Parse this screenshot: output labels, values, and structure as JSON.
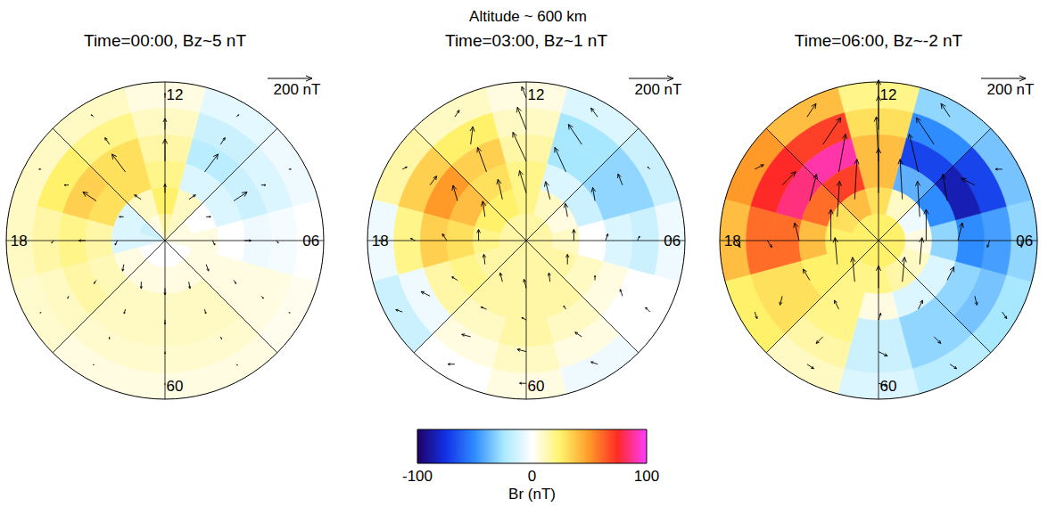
{
  "title": "Altitude ~ 600 km",
  "grid_lat_edges": [
    60,
    65,
    70,
    75,
    80,
    85,
    90
  ],
  "grid_mlt_centers": [
    0,
    2,
    4,
    6,
    8,
    10,
    12,
    14,
    16,
    18,
    20,
    22
  ],
  "vector_mlt": [
    0,
    2,
    4,
    6,
    8,
    10,
    12,
    14,
    16,
    18,
    20,
    22
  ],
  "vector_lat": [
    63,
    69,
    75,
    81
  ],
  "mlt_labels": [
    12,
    18,
    {
      "value": 6,
      "label": "06"
    }
  ],
  "lat_labels": [
    60
  ],
  "colorbar": {
    "range": [
      -100,
      100
    ],
    "ticks": [
      -100,
      0,
      100
    ],
    "label": "Br (nT)",
    "colors": [
      "#1e0066",
      "#1232e6",
      "#2e8cff",
      "#a8e8ff",
      "#ffffff",
      "#fff26a",
      "#ff9a28",
      "#ff2a28",
      "#ff3cff"
    ]
  },
  "chart_data": [
    {
      "type": "polar_map",
      "title": "Time=00:00, Bz~5 nT",
      "arrow_scale": {
        "value": 200,
        "label": "200 nT"
      },
      "br": [
        [
          5,
          5,
          3,
          0,
          -5,
          -8,
          5,
          10,
          10,
          10,
          8,
          5
        ],
        [
          8,
          8,
          5,
          -3,
          -10,
          -15,
          10,
          20,
          25,
          15,
          10,
          8
        ],
        [
          10,
          10,
          5,
          -5,
          -15,
          -20,
          15,
          30,
          35,
          20,
          15,
          10
        ],
        [
          10,
          10,
          5,
          0,
          -10,
          -10,
          20,
          30,
          30,
          15,
          12,
          10
        ],
        [
          5,
          5,
          5,
          5,
          0,
          10,
          25,
          10,
          -10,
          -10,
          5,
          5
        ],
        [
          0,
          0,
          0,
          5,
          5,
          10,
          15,
          5,
          -15,
          -10,
          0,
          0
        ]
      ],
      "b_sun": [
        [
          -5,
          -5,
          -5,
          -5,
          0,
          10,
          20,
          10,
          0,
          -5,
          -5,
          -5
        ],
        [
          -10,
          -10,
          -10,
          -10,
          0,
          30,
          50,
          30,
          0,
          -10,
          -10,
          -10
        ],
        [
          -20,
          -20,
          -15,
          0,
          40,
          80,
          100,
          80,
          40,
          0,
          -15,
          -20
        ],
        [
          -30,
          -30,
          -30,
          -20,
          0,
          20,
          40,
          20,
          0,
          -20,
          -30,
          -30
        ]
      ],
      "b_dawn": [
        [
          0,
          5,
          5,
          5,
          10,
          10,
          0,
          -10,
          -10,
          -5,
          -5,
          0
        ],
        [
          0,
          5,
          10,
          10,
          20,
          20,
          0,
          -20,
          -20,
          -10,
          -5,
          0
        ],
        [
          0,
          5,
          10,
          30,
          60,
          60,
          0,
          -60,
          -60,
          -30,
          -10,
          -5
        ],
        [
          0,
          5,
          10,
          10,
          20,
          30,
          0,
          -30,
          -20,
          -10,
          -5,
          0
        ]
      ]
    },
    {
      "type": "polar_map",
      "title": "Time=03:00, Bz~1 nT",
      "arrow_scale": {
        "value": 200,
        "label": "200 nT"
      },
      "br": [
        [
          5,
          -5,
          0,
          -5,
          -15,
          -10,
          5,
          10,
          15,
          -5,
          -15,
          0
        ],
        [
          10,
          5,
          0,
          -15,
          -30,
          -25,
          10,
          25,
          35,
          20,
          -5,
          5
        ],
        [
          15,
          10,
          5,
          -10,
          -30,
          -25,
          15,
          35,
          50,
          35,
          15,
          10
        ],
        [
          15,
          15,
          10,
          0,
          -15,
          -10,
          20,
          30,
          40,
          30,
          20,
          15
        ],
        [
          15,
          15,
          15,
          10,
          5,
          10,
          20,
          25,
          25,
          20,
          15,
          15
        ],
        [
          15,
          15,
          15,
          15,
          15,
          15,
          15,
          15,
          15,
          15,
          15,
          15
        ]
      ],
      "b_sun": [
        [
          0,
          10,
          20,
          10,
          10,
          40,
          50,
          30,
          10,
          0,
          10,
          0
        ],
        [
          10,
          20,
          30,
          20,
          50,
          90,
          100,
          80,
          40,
          10,
          20,
          10
        ],
        [
          10,
          15,
          20,
          30,
          60,
          110,
          130,
          110,
          70,
          30,
          15,
          10
        ],
        [
          40,
          40,
          45,
          50,
          60,
          80,
          100,
          90,
          70,
          50,
          45,
          40
        ]
      ],
      "b_dawn": [
        [
          -30,
          -30,
          -20,
          10,
          -10,
          -30,
          -20,
          20,
          20,
          -20,
          -30,
          -30
        ],
        [
          -40,
          -30,
          -10,
          10,
          -20,
          -60,
          -40,
          10,
          30,
          -20,
          -40,
          -40
        ],
        [
          -20,
          -10,
          0,
          10,
          -10,
          -50,
          -60,
          -40,
          -20,
          -20,
          -25,
          -25
        ],
        [
          -10,
          -5,
          0,
          0,
          -10,
          -20,
          -30,
          -20,
          -10,
          0,
          -5,
          -10
        ]
      ]
    },
    {
      "type": "polar_map",
      "title": "Time=06:00, Bz~-2 nT",
      "arrow_scale": {
        "value": 200,
        "label": "200 nT"
      },
      "br": [
        [
          -10,
          -20,
          -25,
          -30,
          -35,
          -30,
          20,
          40,
          50,
          40,
          25,
          10
        ],
        [
          -15,
          -30,
          -35,
          -45,
          -70,
          -50,
          30,
          70,
          75,
          60,
          30,
          15
        ],
        [
          -15,
          -30,
          -30,
          -50,
          -85,
          -70,
          40,
          90,
          85,
          60,
          30,
          20
        ],
        [
          5,
          -10,
          -10,
          -30,
          -50,
          -40,
          40,
          70,
          60,
          40,
          25,
          20
        ],
        [
          20,
          15,
          10,
          5,
          -5,
          10,
          30,
          40,
          30,
          25,
          25,
          20
        ],
        [
          25,
          25,
          25,
          25,
          25,
          25,
          25,
          25,
          25,
          25,
          25,
          25
        ]
      ],
      "b_sun": [
        [
          -10,
          -20,
          -30,
          -30,
          0,
          60,
          80,
          60,
          20,
          -30,
          -30,
          -20
        ],
        [
          -20,
          -30,
          -40,
          -30,
          30,
          120,
          150,
          120,
          60,
          -30,
          -40,
          -30
        ],
        [
          30,
          40,
          60,
          80,
          120,
          170,
          200,
          170,
          120,
          80,
          50,
          40
        ],
        [
          100,
          110,
          120,
          140,
          160,
          180,
          200,
          180,
          160,
          140,
          120,
          110
        ]
      ],
      "b_dawn": [
        [
          40,
          30,
          20,
          0,
          -30,
          -40,
          0,
          40,
          40,
          20,
          10,
          30
        ],
        [
          40,
          30,
          10,
          -10,
          -60,
          -80,
          0,
          80,
          60,
          20,
          -10,
          -30
        ],
        [
          10,
          20,
          30,
          20,
          -20,
          -40,
          -10,
          30,
          30,
          -20,
          -30,
          -20
        ],
        [
          0,
          10,
          10,
          0,
          -10,
          -10,
          0,
          10,
          10,
          0,
          -10,
          -10
        ]
      ]
    }
  ]
}
